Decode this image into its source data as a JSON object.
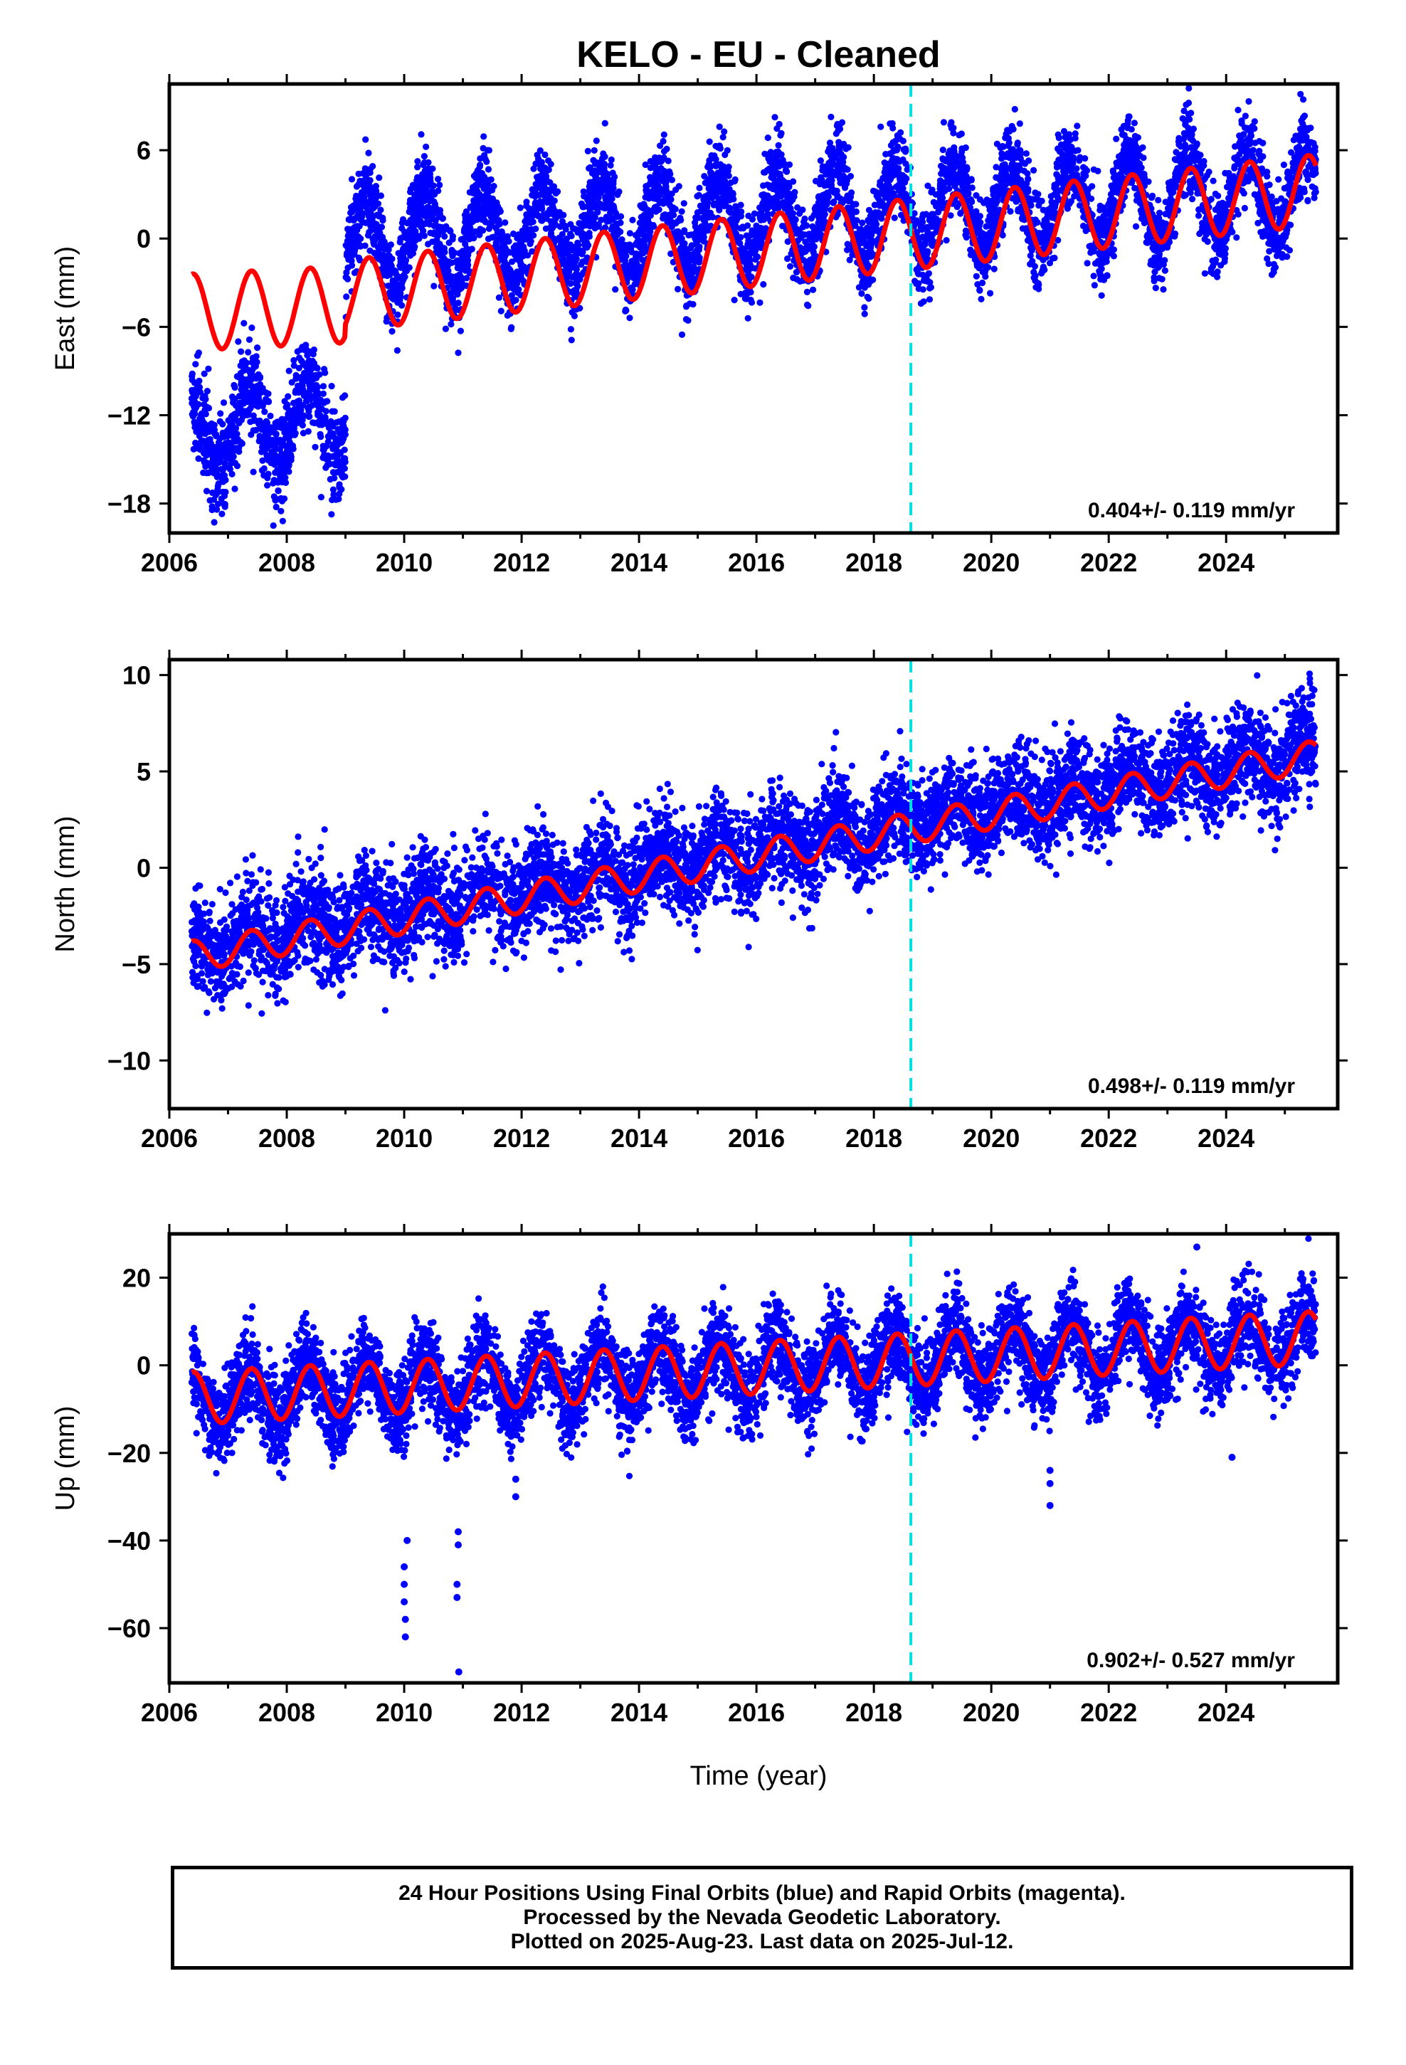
{
  "title": "KELO  - EU - Cleaned",
  "xlabel": "Time (year)",
  "colors": {
    "points": "#0000ff",
    "fit": "#ff0000",
    "event_line": "#00e0e0",
    "axes": "#000000"
  },
  "footer": {
    "line1": "24 Hour Positions Using Final Orbits (blue) and Rapid Orbits (magenta).",
    "line2": "Processed by the Nevada Geodetic Laboratory.",
    "line3": "Plotted on 2025-Aug-23. Last data on 2025-Jul-12."
  },
  "chart_data": [
    {
      "type": "scatter",
      "ylabel": "East (mm)",
      "rate_label": "0.404+/- 0.119 mm/yr",
      "xlim": [
        2006.0,
        2025.9
      ],
      "ylim": [
        -20.0,
        10.5
      ],
      "xticks": [
        2006,
        2008,
        2010,
        2012,
        2014,
        2016,
        2018,
        2020,
        2022,
        2024
      ],
      "yticks": [
        -18,
        -12,
        -6,
        0,
        6
      ],
      "event_line_x": 2018.63,
      "data_start": 2006.38,
      "data_end": 2025.53,
      "series": [
        {
          "style": "points",
          "segments": [
            {
              "x0": 2006.38,
              "x1": 2009.0,
              "y0": -13.2,
              "y1": -12.0,
              "amp": 2.6,
              "noise": 1.6
            },
            {
              "x0": 2009.0,
              "x1": 2025.53,
              "y0": -0.3,
              "y1": 3.4,
              "amp": 3.0,
              "noise": 1.5
            }
          ]
        },
        {
          "style": "line",
          "trend": {
            "y0": -5.0,
            "y1": 3.3
          },
          "amp": 2.4
        }
      ],
      "fit_samples": [
        {
          "x": 2006.4,
          "y": -2.7
        },
        {
          "x": 2006.85,
          "y": -7.8
        },
        {
          "x": 2007.4,
          "y": -2.4
        },
        {
          "x": 2007.9,
          "y": -7.4
        },
        {
          "x": 2008.4,
          "y": -1.9
        },
        {
          "x": 2008.9,
          "y": -7.0
        },
        {
          "x": 2009.4,
          "y": -1.5
        },
        {
          "x": 2010.9,
          "y": -6.3
        },
        {
          "x": 2020.4,
          "y": 4.1
        },
        {
          "x": 2024.4,
          "y": 6.0
        },
        {
          "x": 2025.4,
          "y": 6.0
        }
      ]
    },
    {
      "type": "scatter",
      "ylabel": "North (mm)",
      "rate_label": "0.498+/- 0.119 mm/yr",
      "xlim": [
        2006.0,
        2025.9
      ],
      "ylim": [
        -12.5,
        10.8
      ],
      "xticks": [
        2006,
        2008,
        2010,
        2012,
        2014,
        2016,
        2018,
        2020,
        2022,
        2024
      ],
      "yticks": [
        -10,
        -5,
        0,
        5,
        10
      ],
      "event_line_x": 2018.63,
      "data_start": 2006.38,
      "data_end": 2025.53,
      "series": [
        {
          "style": "points",
          "segments": [
            {
              "x0": 2006.38,
              "x1": 2025.53,
              "y0": -4.2,
              "y1": 6.0,
              "amp": 0.8,
              "noise": 1.3
            }
          ]
        },
        {
          "style": "line",
          "trend": {
            "y0": -4.6,
            "y1": 5.8
          },
          "amp": 0.8
        }
      ],
      "fit_samples": [
        {
          "x": 2006.4,
          "y": -4.2
        },
        {
          "x": 2010.0,
          "y": -3.0
        },
        {
          "x": 2018.6,
          "y": 1.5
        },
        {
          "x": 2025.5,
          "y": 6.3
        }
      ]
    },
    {
      "type": "scatter",
      "ylabel": "Up (mm)",
      "rate_label": "0.902+/- 0.527 mm/yr",
      "xlim": [
        2006.0,
        2025.9
      ],
      "ylim": [
        -72.5,
        30.0
      ],
      "xticks": [
        2006,
        2008,
        2010,
        2012,
        2014,
        2016,
        2018,
        2020,
        2022,
        2024
      ],
      "yticks": [
        -60,
        -40,
        -20,
        0,
        20
      ],
      "event_line_x": 2018.63,
      "data_start": 2006.38,
      "data_end": 2025.53,
      "series": [
        {
          "style": "points",
          "segments": [
            {
              "x0": 2006.38,
              "x1": 2025.53,
              "y0": -7.5,
              "y1": 6.0,
              "amp": 6.5,
              "noise": 5.0
            }
          ]
        },
        {
          "style": "line",
          "trend": {
            "y0": -7.5,
            "y1": 6.3
          },
          "amp": 6.0
        }
      ],
      "outliers": [
        {
          "x": 2010.0,
          "y": -46
        },
        {
          "x": 2010.0,
          "y": -50
        },
        {
          "x": 2010.0,
          "y": -54
        },
        {
          "x": 2010.02,
          "y": -58
        },
        {
          "x": 2010.02,
          "y": -62
        },
        {
          "x": 2010.05,
          "y": -40
        },
        {
          "x": 2010.92,
          "y": -38
        },
        {
          "x": 2010.92,
          "y": -41
        },
        {
          "x": 2010.9,
          "y": -50
        },
        {
          "x": 2010.9,
          "y": -53
        },
        {
          "x": 2010.93,
          "y": -70
        },
        {
          "x": 2011.9,
          "y": -26
        },
        {
          "x": 2011.9,
          "y": -30
        },
        {
          "x": 2021.0,
          "y": -24
        },
        {
          "x": 2021.0,
          "y": -27
        },
        {
          "x": 2021.0,
          "y": -32
        },
        {
          "x": 2023.5,
          "y": 27
        },
        {
          "x": 2024.1,
          "y": -21
        }
      ]
    }
  ]
}
